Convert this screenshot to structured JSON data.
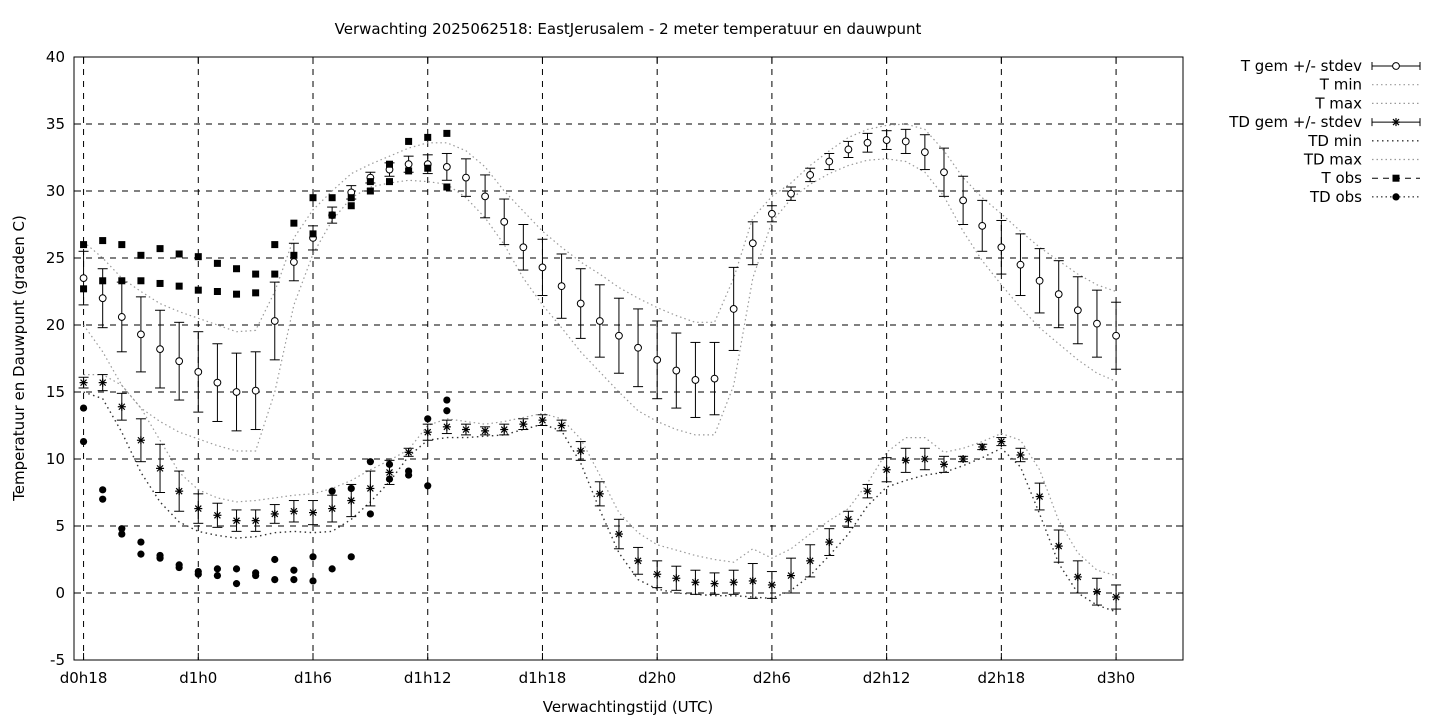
{
  "chart_data": {
    "type": "line",
    "title": "Verwachting 2025062518: EastJerusalem - 2 meter temperatuur en dauwpunt",
    "xlabel": "Verwachtingstijd (UTC)",
    "ylabel": "Temperatuur en Dauwpunt (graden C)",
    "xlim": [
      -0.5,
      57.5
    ],
    "ylim": [
      -5,
      40
    ],
    "grid": true,
    "legend_position": "outside-right",
    "x_ticks": [
      {
        "x": 0,
        "label": "d0h18"
      },
      {
        "x": 6,
        "label": "d1h0"
      },
      {
        "x": 12,
        "label": "d1h6"
      },
      {
        "x": 18,
        "label": "d1h12"
      },
      {
        "x": 24,
        "label": "d1h18"
      },
      {
        "x": 30,
        "label": "d2h0"
      },
      {
        "x": 36,
        "label": "d2h6"
      },
      {
        "x": 42,
        "label": "d2h12"
      },
      {
        "x": 48,
        "label": "d2h18"
      },
      {
        "x": 54,
        "label": "d3h0"
      }
    ],
    "y_ticks": [
      -5,
      0,
      5,
      10,
      15,
      20,
      25,
      30,
      35,
      40
    ],
    "legend": [
      {
        "name": "T gem +/- stdev",
        "style": "errorbar-circle"
      },
      {
        "name": "T min",
        "style": "dotted"
      },
      {
        "name": "T max",
        "style": "dotted"
      },
      {
        "name": "TD gem +/- stdev",
        "style": "errorbar-star"
      },
      {
        "name": "TD min",
        "style": "dotted-dark"
      },
      {
        "name": "TD max",
        "style": "dotted"
      },
      {
        "name": "T obs",
        "style": "dashed-square"
      },
      {
        "name": "TD obs",
        "style": "dotted-circle"
      }
    ],
    "series": [
      {
        "name": "T gem +/- stdev",
        "x": [
          0,
          1,
          2,
          3,
          4,
          5,
          6,
          7,
          8,
          9,
          10,
          11,
          12,
          13,
          14,
          15,
          16,
          17,
          18,
          19,
          20,
          21,
          22,
          23,
          24,
          25,
          26,
          27,
          28,
          29,
          30,
          31,
          32,
          33,
          34,
          35,
          36,
          37,
          38,
          39,
          40,
          41,
          42,
          43,
          44,
          45,
          46,
          47,
          48,
          49,
          50,
          51,
          52,
          53,
          54
        ],
        "mean": [
          23.5,
          22.0,
          20.6,
          19.3,
          18.2,
          17.3,
          16.5,
          15.7,
          15.0,
          15.1,
          20.3,
          24.7,
          26.5,
          28.2,
          29.9,
          31.0,
          31.6,
          32.0,
          32.0,
          31.8,
          31.0,
          29.6,
          27.7,
          25.8,
          24.3,
          22.9,
          21.6,
          20.3,
          19.2,
          18.3,
          17.4,
          16.6,
          15.9,
          16.0,
          21.2,
          26.1,
          28.3,
          29.8,
          31.2,
          32.2,
          33.1,
          33.6,
          33.8,
          33.7,
          32.9,
          31.4,
          29.3,
          27.4,
          25.8,
          24.5,
          23.3,
          22.3,
          21.1,
          20.1,
          19.2
        ],
        "stdev": [
          2.0,
          2.2,
          2.6,
          2.8,
          2.9,
          2.9,
          3.0,
          2.9,
          2.9,
          2.9,
          2.9,
          1.4,
          0.9,
          0.6,
          0.5,
          0.4,
          0.5,
          0.6,
          0.7,
          1.0,
          1.4,
          1.6,
          1.7,
          1.7,
          2.1,
          2.4,
          2.6,
          2.7,
          2.8,
          2.9,
          2.9,
          2.8,
          2.8,
          2.7,
          3.1,
          1.6,
          0.6,
          0.5,
          0.5,
          0.6,
          0.6,
          0.7,
          0.7,
          0.9,
          1.3,
          1.8,
          1.8,
          1.9,
          2.0,
          2.3,
          2.4,
          2.5,
          2.5,
          2.5,
          2.5
        ]
      },
      {
        "name": "T min",
        "x": [
          0,
          1,
          2,
          3,
          4,
          5,
          6,
          7,
          8,
          9,
          10,
          11,
          12,
          13,
          14,
          15,
          16,
          17,
          18,
          19,
          20,
          21,
          22,
          23,
          24,
          25,
          26,
          27,
          28,
          29,
          30,
          31,
          32,
          33,
          34,
          35,
          36,
          37,
          38,
          39,
          40,
          41,
          42,
          43,
          44,
          45,
          46,
          47,
          48,
          49,
          50,
          51,
          52,
          53,
          54
        ],
        "values": [
          20.0,
          18.0,
          15.5,
          13.8,
          12.8,
          12.0,
          11.5,
          11.0,
          10.6,
          10.6,
          15.0,
          21.5,
          25.3,
          27.8,
          29.5,
          30.3,
          30.6,
          30.8,
          30.7,
          30.5,
          29.5,
          28.0,
          26.0,
          23.5,
          21.5,
          19.8,
          18.0,
          16.5,
          15.0,
          13.6,
          12.8,
          12.2,
          11.8,
          11.8,
          15.5,
          23.5,
          27.7,
          29.4,
          30.5,
          31.3,
          31.9,
          32.3,
          32.4,
          32.2,
          31.4,
          29.6,
          27.0,
          24.8,
          23.0,
          21.3,
          19.8,
          18.6,
          17.4,
          16.4,
          15.8
        ]
      },
      {
        "name": "T max",
        "x": [
          0,
          1,
          2,
          3,
          4,
          5,
          6,
          7,
          8,
          9,
          10,
          11,
          12,
          13,
          14,
          15,
          16,
          17,
          18,
          19,
          20,
          21,
          22,
          23,
          24,
          25,
          26,
          27,
          28,
          29,
          30,
          31,
          32,
          33,
          34,
          35,
          36,
          37,
          38,
          39,
          40,
          41,
          42,
          43,
          44,
          45,
          46,
          47,
          48,
          49,
          50,
          51,
          52,
          53,
          54
        ],
        "values": [
          26.2,
          25.0,
          23.5,
          22.5,
          21.6,
          21.0,
          20.5,
          20.0,
          19.5,
          19.6,
          22.5,
          26.5,
          28.6,
          30.0,
          31.3,
          32.0,
          32.6,
          33.2,
          33.6,
          33.6,
          33.0,
          31.8,
          30.0,
          28.5,
          27.0,
          25.8,
          24.7,
          23.8,
          22.8,
          22.0,
          21.3,
          20.7,
          20.2,
          20.2,
          23.5,
          28.0,
          29.6,
          30.6,
          31.9,
          33.0,
          34.0,
          34.6,
          34.9,
          35.0,
          34.6,
          33.0,
          31.0,
          29.5,
          28.3,
          27.0,
          25.8,
          24.8,
          23.8,
          23.0,
          22.5
        ]
      },
      {
        "name": "TD gem +/- stdev",
        "x": [
          0,
          1,
          2,
          3,
          4,
          5,
          6,
          7,
          8,
          9,
          10,
          11,
          12,
          13,
          14,
          15,
          16,
          17,
          18,
          19,
          20,
          21,
          22,
          23,
          24,
          25,
          26,
          27,
          28,
          29,
          30,
          31,
          32,
          33,
          34,
          35,
          36,
          37,
          38,
          39,
          40,
          41,
          42,
          43,
          44,
          45,
          46,
          47,
          48,
          49,
          50,
          51,
          52,
          53,
          54
        ],
        "mean": [
          15.7,
          15.7,
          13.9,
          11.4,
          9.3,
          7.6,
          6.3,
          5.8,
          5.4,
          5.4,
          5.9,
          6.1,
          6.0,
          6.3,
          6.9,
          7.8,
          9.0,
          10.5,
          12.0,
          12.4,
          12.2,
          12.1,
          12.2,
          12.6,
          12.9,
          12.5,
          10.6,
          7.4,
          4.4,
          2.4,
          1.4,
          1.1,
          0.8,
          0.7,
          0.8,
          0.9,
          0.6,
          1.3,
          2.4,
          3.8,
          5.5,
          7.6,
          9.2,
          9.9,
          10.0,
          9.6,
          10.0,
          10.9,
          11.3,
          10.3,
          7.2,
          3.5,
          1.2,
          0.1,
          -0.3
        ],
        "stdev": [
          0.4,
          0.6,
          1.0,
          1.6,
          1.8,
          1.5,
          1.1,
          0.9,
          0.8,
          0.8,
          0.7,
          0.8,
          0.9,
          1.0,
          1.2,
          1.3,
          0.9,
          0.3,
          0.6,
          0.5,
          0.4,
          0.3,
          0.4,
          0.4,
          0.4,
          0.4,
          0.7,
          0.9,
          1.1,
          1.0,
          1.0,
          0.9,
          0.9,
          0.8,
          0.9,
          1.3,
          1.0,
          1.3,
          1.2,
          1.0,
          0.6,
          0.5,
          0.9,
          0.9,
          0.8,
          0.6,
          0.2,
          0.2,
          0.3,
          0.5,
          1.0,
          1.2,
          1.2,
          1.0,
          0.9
        ]
      },
      {
        "name": "TD min",
        "x": [
          0,
          1,
          2,
          3,
          4,
          5,
          6,
          7,
          8,
          9,
          10,
          11,
          12,
          13,
          14,
          15,
          16,
          17,
          18,
          19,
          20,
          21,
          22,
          23,
          24,
          25,
          26,
          27,
          28,
          29,
          30,
          31,
          32,
          33,
          34,
          35,
          36,
          37,
          38,
          39,
          40,
          41,
          42,
          43,
          44,
          45,
          46,
          47,
          48,
          49,
          50,
          51,
          52,
          53,
          54
        ],
        "values": [
          15.0,
          14.5,
          12.0,
          9.0,
          6.8,
          5.3,
          4.6,
          4.3,
          4.1,
          4.2,
          4.5,
          4.6,
          4.5,
          4.6,
          5.5,
          6.8,
          8.3,
          10.2,
          11.4,
          11.6,
          11.6,
          11.7,
          11.8,
          12.2,
          12.6,
          12.1,
          9.7,
          6.2,
          3.0,
          1.0,
          0.3,
          0.0,
          -0.1,
          -0.2,
          -0.2,
          -0.3,
          -0.4,
          0.2,
          1.3,
          2.8,
          4.4,
          6.5,
          7.9,
          8.4,
          8.8,
          9.0,
          9.5,
          10.1,
          10.8,
          9.4,
          5.9,
          2.2,
          0.0,
          -0.9,
          -1.4
        ]
      },
      {
        "name": "TD max",
        "x": [
          0,
          1,
          2,
          3,
          4,
          5,
          6,
          7,
          8,
          9,
          10,
          11,
          12,
          13,
          14,
          15,
          16,
          17,
          18,
          19,
          20,
          21,
          22,
          23,
          24,
          25,
          26,
          27,
          28,
          29,
          30,
          31,
          32,
          33,
          34,
          35,
          36,
          37,
          38,
          39,
          40,
          41,
          42,
          43,
          44,
          45,
          46,
          47,
          48,
          49,
          50,
          51,
          52,
          53,
          54
        ],
        "values": [
          16.3,
          16.3,
          15.5,
          13.8,
          11.4,
          9.0,
          7.7,
          7.1,
          6.8,
          6.9,
          7.1,
          7.3,
          7.4,
          7.8,
          8.4,
          9.2,
          9.9,
          10.7,
          12.5,
          13.0,
          12.8,
          12.6,
          12.8,
          13.1,
          13.4,
          13.0,
          11.5,
          8.8,
          6.0,
          4.5,
          3.6,
          3.2,
          2.8,
          2.5,
          2.3,
          3.3,
          2.6,
          3.3,
          4.4,
          5.4,
          6.3,
          8.2,
          10.5,
          11.6,
          11.6,
          10.5,
          10.8,
          11.3,
          11.9,
          11.4,
          9.2,
          5.4,
          3.0,
          1.7,
          1.3
        ]
      },
      {
        "name": "T obs",
        "x": [
          0,
          0,
          1,
          1,
          2,
          2,
          3,
          3,
          4,
          4,
          5,
          5,
          6,
          6,
          7,
          7,
          8,
          8,
          9,
          9,
          10,
          10,
          11,
          11,
          12,
          12,
          13,
          13,
          14,
          14,
          15,
          15,
          16,
          16,
          17,
          17,
          18,
          18,
          19,
          19
        ],
        "values": [
          26.0,
          22.7,
          26.3,
          23.3,
          26.0,
          23.3,
          25.2,
          23.3,
          25.7,
          23.1,
          25.3,
          22.9,
          25.1,
          22.6,
          24.6,
          22.5,
          24.2,
          22.3,
          23.8,
          22.4,
          26.0,
          23.8,
          27.6,
          25.2,
          29.5,
          26.8,
          29.5,
          28.2,
          29.5,
          28.9,
          30.7,
          30.0,
          32.0,
          30.7,
          33.7,
          31.5,
          34.0,
          31.7,
          34.3,
          30.3
        ]
      },
      {
        "name": "TD obs",
        "x": [
          0,
          0,
          1,
          1,
          2,
          2,
          3,
          3,
          4,
          4,
          5,
          5,
          6,
          6,
          7,
          7,
          8,
          8,
          9,
          9,
          10,
          10,
          11,
          11,
          12,
          12,
          13,
          13,
          14,
          14,
          15,
          15,
          16,
          16,
          17,
          17,
          18,
          18,
          19,
          19
        ],
        "values": [
          13.8,
          11.3,
          7.7,
          7.0,
          4.8,
          4.4,
          3.8,
          2.9,
          2.8,
          2.6,
          2.1,
          1.9,
          1.6,
          1.4,
          1.8,
          1.3,
          1.8,
          0.7,
          1.5,
          1.3,
          2.5,
          1.0,
          1.7,
          1.0,
          2.7,
          0.9,
          7.6,
          1.8,
          7.8,
          2.7,
          9.8,
          5.9,
          9.6,
          8.5,
          9.1,
          8.8,
          13.0,
          8.0,
          14.4,
          13.6
        ]
      }
    ]
  }
}
